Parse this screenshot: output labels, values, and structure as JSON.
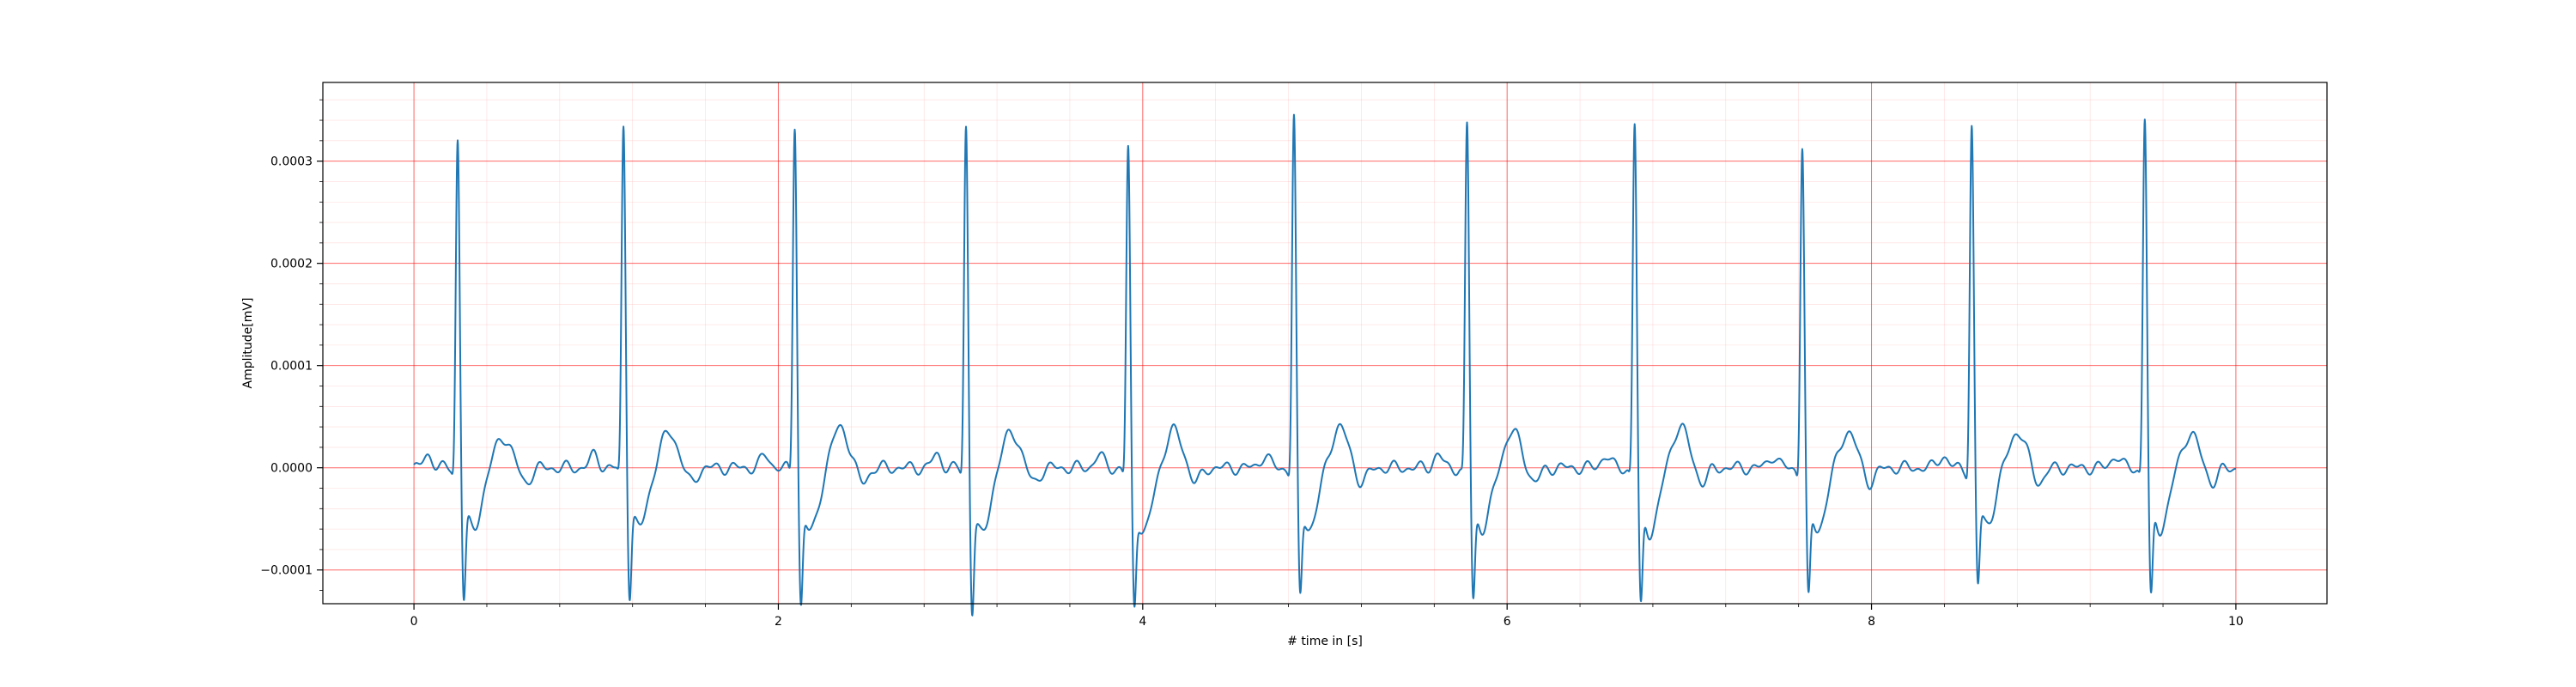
{
  "chart_data": {
    "type": "line",
    "title": "",
    "xlabel": "# time in [s]",
    "ylabel": "Amplitude[mV]",
    "xlim": [
      -0.5,
      10.5
    ],
    "ylim": [
      -0.000133,
      0.000377
    ],
    "x_ticks": [
      0,
      2,
      4,
      6,
      8,
      10
    ],
    "x_tick_labels": [
      "0",
      "2",
      "4",
      "6",
      "8",
      "10"
    ],
    "y_ticks": [
      -0.0001,
      0.0,
      0.0001,
      0.0002,
      0.0003
    ],
    "y_tick_labels": [
      "−0.0001",
      "0.0000",
      "0.0001",
      "0.0002",
      "0.0003"
    ],
    "grid": {
      "major": true,
      "minor": true
    },
    "legend": "none",
    "series": [
      {
        "beat_times": [
          0.24,
          1.15,
          2.09,
          3.03,
          3.92,
          4.83,
          5.78,
          6.7,
          7.62,
          8.55,
          9.5
        ],
        "r_peaks": [
          0.000335,
          0.000347,
          0.00035,
          0.000348,
          0.000325,
          0.000355,
          0.000348,
          0.00035,
          0.000327,
          0.000345,
          0.000355
        ],
        "s_troughs": [
          -0.0001,
          -9.7e-05,
          -0.000105,
          -0.000109,
          -0.000105,
          -9.8e-05,
          -0.0001,
          -0.000106,
          -0.0001,
          -9e-05,
          -0.0001
        ],
        "t_waves": [
          3e-05,
          3.5e-05,
          4e-05,
          3.5e-05,
          3.6e-05,
          4e-05,
          3.5e-05,
          4e-05,
          3.5e-05,
          3.5e-05,
          3.3e-05
        ],
        "baseline": 0.0,
        "x_start": 0.0,
        "x_end": 10.0
      }
    ]
  },
  "colors": {
    "line": "#1f77b4",
    "grid_major": "#ff0000",
    "grid_minor": "#ff9999",
    "axes": "#000000",
    "background": "#ffffff"
  }
}
